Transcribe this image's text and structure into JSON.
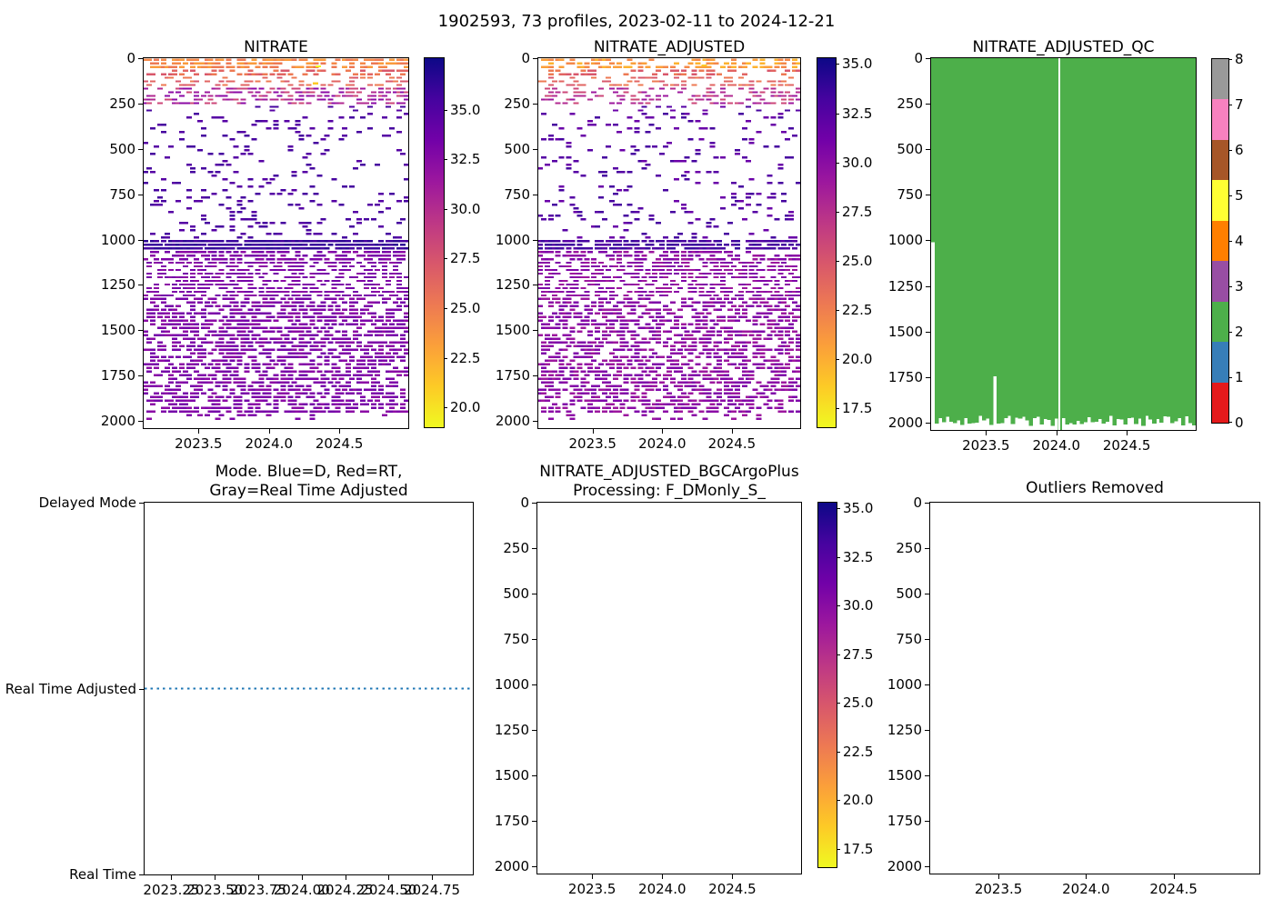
{
  "chart_data": {
    "type": "multi-panel",
    "suptitle": "1902593, 73 profiles, 2023-02-11 to 2024-12-21",
    "float_id": "1902593",
    "n_profiles": 73,
    "date_start": "2023-02-11",
    "date_end": "2024-12-21",
    "panels": [
      {
        "id": "nitrate",
        "title": "NITRATE",
        "type": "profile-scatter",
        "seed": 7,
        "profiles": 73,
        "x_range": [
          2023.11,
          2024.99
        ],
        "x_ticks": [
          2023.5,
          2024.0,
          2024.5
        ],
        "x_tick_decimals": 1,
        "y_range": [
          0,
          2040
        ],
        "y_ticks": [
          0,
          250,
          500,
          750,
          1000,
          1250,
          1500,
          1750,
          2000
        ],
        "row_start": 8,
        "row_step": 20,
        "marker": {
          "w": 6,
          "h": 2.4
        },
        "bands": [
          {
            "d0": 0,
            "d1": 55,
            "p": 0.55,
            "colors": [
              "#f48849",
              "#ed7953",
              "#fa9b3d"
            ]
          },
          {
            "d0": 55,
            "d1": 150,
            "p": 0.32,
            "colors": [
              "#e16462",
              "#d8576b",
              "#ed7953"
            ]
          },
          {
            "d0": 150,
            "d1": 260,
            "p": 0.42,
            "colors": [
              "#9c179e",
              "#b12a90",
              "#8b0aa5",
              "#cc4778"
            ]
          },
          {
            "d0": 260,
            "d1": 1000,
            "p": 0.1,
            "colors": [
              "#46039f",
              "#5601a4"
            ]
          },
          {
            "d0": 1000,
            "d1": 1068,
            "p": 0.85,
            "colors": [
              "#2d0594",
              "#3a049d",
              "#46039f"
            ]
          },
          {
            "d0": 1068,
            "d1": 1960,
            "p": 0.52,
            "colors": [
              "#7e03a8",
              "#8b0aa5",
              "#7401a8"
            ]
          },
          {
            "d0": 1960,
            "d1": 2000,
            "p": 0.12,
            "colors": [
              "#8b0aa5",
              "#7e03a8"
            ]
          }
        ],
        "highlights": [
          {
            "x": 2024.35,
            "d": 45,
            "c": "#f0f921"
          },
          {
            "x": 2024.33,
            "d": 140,
            "c": "#fdca26"
          }
        ]
      },
      {
        "id": "nitrate-adjusted",
        "title": "NITRATE_ADJUSTED",
        "type": "profile-scatter",
        "seed": 11,
        "profiles": 73,
        "x_range": [
          2023.11,
          2024.99
        ],
        "x_ticks": [
          2023.5,
          2024.0,
          2024.5
        ],
        "x_tick_decimals": 1,
        "y_range": [
          0,
          2040
        ],
        "y_ticks": [
          0,
          250,
          500,
          750,
          1000,
          1250,
          1500,
          1750,
          2000
        ],
        "row_start": 8,
        "row_step": 20,
        "marker": {
          "w": 6,
          "h": 2.4
        },
        "bands": [
          {
            "d0": 0,
            "d1": 55,
            "p": 0.48,
            "colors": [
              "#fb9f3a",
              "#f48849",
              "#fdb32f"
            ]
          },
          {
            "d0": 55,
            "d1": 150,
            "p": 0.28,
            "colors": [
              "#e16462",
              "#ed7953",
              "#d8576b"
            ]
          },
          {
            "d0": 150,
            "d1": 260,
            "p": 0.38,
            "colors": [
              "#b12a90",
              "#9c179e",
              "#cc4778"
            ]
          },
          {
            "d0": 260,
            "d1": 1000,
            "p": 0.09,
            "colors": [
              "#5601a4",
              "#46039f",
              "#6a00a8"
            ]
          },
          {
            "d0": 1000,
            "d1": 1060,
            "p": 0.72,
            "colors": [
              "#46039f",
              "#5601a4",
              "#3a049d"
            ]
          },
          {
            "d0": 1060,
            "d1": 1960,
            "p": 0.47,
            "colors": [
              "#8b0aa5",
              "#9c179e",
              "#7e03a8"
            ]
          },
          {
            "d0": 1960,
            "d1": 2000,
            "p": 0.1,
            "colors": [
              "#8b0aa5",
              "#9c179e"
            ]
          }
        ],
        "highlights": [
          {
            "x": 2024.3,
            "d": 40,
            "c": "#fdca26"
          }
        ]
      },
      {
        "id": "nitrate-adjusted-qc",
        "title": "NITRATE_ADJUSTED_QC",
        "type": "qc-fill",
        "seed": 5,
        "profiles": 73,
        "x_range": [
          2023.11,
          2024.99
        ],
        "x_ticks": [
          2023.5,
          2024.0,
          2024.5
        ],
        "x_tick_decimals": 1,
        "y_range": [
          0,
          2040
        ],
        "y_ticks": [
          0,
          250,
          500,
          750,
          1000,
          1250,
          1500,
          1750,
          2000
        ],
        "fill_color": "#4daf4a",
        "fill_qc_value": 2,
        "bottom_base": 1990,
        "bottom_jitter": 28,
        "white_line_x": 2024.02,
        "specials": [
          {
            "col": 0,
            "bottom": 1010
          },
          {
            "col": 17,
            "bottom": 1745
          },
          {
            "col": 35,
            "bottom": 2060
          }
        ]
      },
      {
        "id": "mode",
        "title": "Mode. Blue=D, Red=RT,\nGray=Real Time Adjusted",
        "type": "mode-line",
        "x_range": [
          2023.096,
          2024.985
        ],
        "x_ticks": [
          2023.25,
          2023.5,
          2023.75,
          2024.0,
          2024.25,
          2024.5,
          2024.75
        ],
        "x_tick_decimals": 2,
        "y_tick_labels": [
          {
            "f": 0.0,
            "label": "Delayed Mode"
          },
          {
            "f": 0.5,
            "label": "Real Time Adjusted"
          },
          {
            "f": 1.0,
            "label": "Real Time"
          }
        ],
        "line": {
          "f": 0.5,
          "color": "#1f77b4",
          "style": "dotted",
          "mode_value": "Real Time Adjusted"
        }
      },
      {
        "id": "nitrate-adjusted-bgcargoplus",
        "title": "NITRATE_ADJUSTED_BGCArgoPlus\nProcessing: F_DMonly_S_",
        "type": "empty",
        "x_range": [
          2023.11,
          2024.99
        ],
        "x_ticks": [
          2023.5,
          2024.0,
          2024.5
        ],
        "x_tick_decimals": 1,
        "y_range": [
          0,
          2040
        ],
        "y_ticks": [
          0,
          250,
          500,
          750,
          1000,
          1250,
          1500,
          1750,
          2000
        ]
      },
      {
        "id": "outliers-removed",
        "title": "Outliers Removed",
        "type": "empty",
        "x_range": [
          2023.11,
          2024.99
        ],
        "x_ticks": [
          2023.5,
          2024.0,
          2024.5
        ],
        "x_tick_decimals": 1,
        "y_range": [
          0,
          2040
        ],
        "y_ticks": [
          0,
          250,
          500,
          750,
          1000,
          1250,
          1500,
          1750,
          2000
        ]
      }
    ],
    "colorbars": [
      {
        "id": "cbar-nitrate",
        "type": "gradient",
        "colormap": "plasma_r",
        "colors": [
          "#0d0887",
          "#46039f",
          "#7201a8",
          "#9c179e",
          "#bd3786",
          "#d8576b",
          "#ed7953",
          "#fb9f3a",
          "#fdca26",
          "#f0f921"
        ],
        "range": [
          19.0,
          37.6
        ],
        "ticks": [
          35.0,
          32.5,
          30.0,
          27.5,
          25.0,
          22.5,
          20.0
        ],
        "decimals": 1
      },
      {
        "id": "cbar-nitrate-adjusted",
        "type": "gradient",
        "colormap": "plasma_r",
        "colors": [
          "#0d0887",
          "#46039f",
          "#7201a8",
          "#9c179e",
          "#bd3786",
          "#d8576b",
          "#ed7953",
          "#fb9f3a",
          "#fdca26",
          "#f0f921"
        ],
        "range": [
          16.55,
          35.3
        ],
        "ticks": [
          35.0,
          32.5,
          30.0,
          27.5,
          25.0,
          22.5,
          20.0,
          17.5
        ],
        "decimals": 1
      },
      {
        "id": "cbar-qc",
        "type": "discrete",
        "colormap": "Set1",
        "colors_top_to_bottom": [
          "#999999",
          "#f781bf",
          "#a65628",
          "#ffff33",
          "#ff7f00",
          "#984ea3",
          "#4daf4a",
          "#377eb8",
          "#e41a1c"
        ],
        "range": [
          0,
          8
        ],
        "ticks": [
          0,
          1,
          2,
          3,
          4,
          5,
          6,
          7,
          8
        ],
        "decimals": 0
      },
      {
        "id": "cbar-bgcargoplus",
        "type": "gradient",
        "colormap": "plasma_r",
        "colors": [
          "#0d0887",
          "#46039f",
          "#7201a8",
          "#9c179e",
          "#bd3786",
          "#d8576b",
          "#ed7953",
          "#fb9f3a",
          "#fdca26",
          "#f0f921"
        ],
        "range": [
          16.55,
          35.3
        ],
        "ticks": [
          35.0,
          32.5,
          30.0,
          27.5,
          25.0,
          22.5,
          20.0,
          17.5
        ],
        "decimals": 1
      }
    ]
  }
}
